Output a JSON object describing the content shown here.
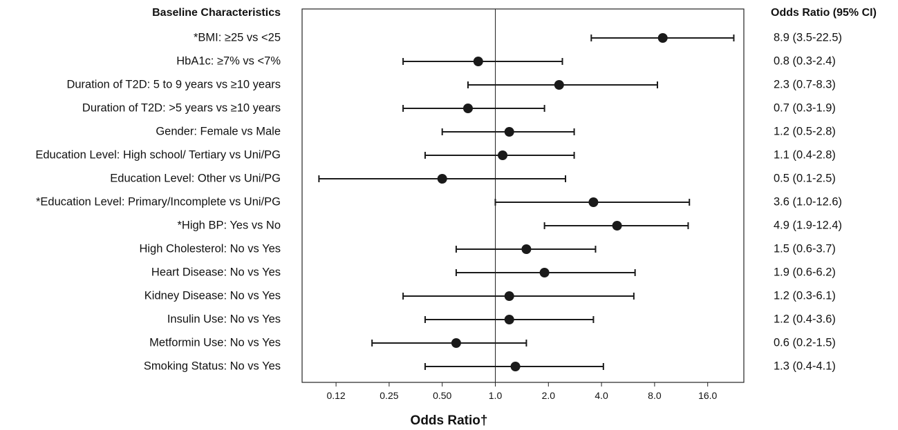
{
  "chart_data": {
    "type": "forest",
    "left_header": "Baseline Characteristics",
    "right_header": "Odds Ratio (95% CI)",
    "xlabel": "Odds Ratio†",
    "x_scale": "log2",
    "xlim": [
      0.08,
      24
    ],
    "reference_line": 1.0,
    "ticks": [
      {
        "value": 0.125,
        "label": "0.12"
      },
      {
        "value": 0.25,
        "label": "0.25"
      },
      {
        "value": 0.5,
        "label": "0.50"
      },
      {
        "value": 1.0,
        "label": "1.0"
      },
      {
        "value": 2.0,
        "label": "2.0"
      },
      {
        "value": 4.0,
        "label": "4.0"
      },
      {
        "value": 8.0,
        "label": "8.0"
      },
      {
        "value": 16.0,
        "label": "16.0"
      }
    ],
    "rows": [
      {
        "label": "*BMI: ≥25 vs <25",
        "or": 8.9,
        "lo": 3.5,
        "hi": 22.5,
        "text": "8.9 (3.5-22.5)"
      },
      {
        "label": "HbA1c: ≥7% vs <7%",
        "or": 0.8,
        "lo": 0.3,
        "hi": 2.4,
        "text": "0.8 (0.3-2.4)"
      },
      {
        "label": "Duration of T2D: 5 to 9 years vs ≥10 years",
        "or": 2.3,
        "lo": 0.7,
        "hi": 8.3,
        "text": "2.3 (0.7-8.3)"
      },
      {
        "label": "Duration of T2D: >5 years vs ≥10 years",
        "or": 0.7,
        "lo": 0.3,
        "hi": 1.9,
        "text": "0.7 (0.3-1.9)"
      },
      {
        "label": "Gender: Female vs Male",
        "or": 1.2,
        "lo": 0.5,
        "hi": 2.8,
        "text": "1.2 (0.5-2.8)"
      },
      {
        "label": "Education Level: High school/ Tertiary vs Uni/PG",
        "or": 1.1,
        "lo": 0.4,
        "hi": 2.8,
        "text": "1.1 (0.4-2.8)"
      },
      {
        "label": "Education Level: Other vs Uni/PG",
        "or": 0.5,
        "lo": 0.1,
        "hi": 2.5,
        "text": "0.5 (0.1-2.5)"
      },
      {
        "label": "*Education Level: Primary/Incomplete vs Uni/PG",
        "or": 3.6,
        "lo": 1.0,
        "hi": 12.6,
        "text": "3.6 (1.0-12.6)"
      },
      {
        "label": "*High BP: Yes vs No",
        "or": 4.9,
        "lo": 1.9,
        "hi": 12.4,
        "text": "4.9 (1.9-12.4)"
      },
      {
        "label": "High Cholesterol: No vs Yes",
        "or": 1.5,
        "lo": 0.6,
        "hi": 3.7,
        "text": "1.5 (0.6-3.7)"
      },
      {
        "label": "Heart Disease: No vs Yes",
        "or": 1.9,
        "lo": 0.6,
        "hi": 6.2,
        "text": "1.9 (0.6-6.2)"
      },
      {
        "label": "Kidney Disease: No vs Yes",
        "or": 1.2,
        "lo": 0.3,
        "hi": 6.1,
        "text": "1.2 (0.3-6.1)"
      },
      {
        "label": "Insulin Use: No vs Yes",
        "or": 1.2,
        "lo": 0.4,
        "hi": 3.6,
        "text": "1.2 (0.4-3.6)"
      },
      {
        "label": "Metformin Use: No vs Yes",
        "or": 0.6,
        "lo": 0.2,
        "hi": 1.5,
        "text": "0.6 (0.2-1.5)"
      },
      {
        "label": "Smoking Status: No vs Yes",
        "or": 1.3,
        "lo": 0.4,
        "hi": 4.1,
        "text": "1.3 (0.4-4.1)"
      }
    ],
    "colors": {
      "marker": "#1a1a1a",
      "line": "#1a1a1a",
      "frame": "#222222"
    }
  }
}
